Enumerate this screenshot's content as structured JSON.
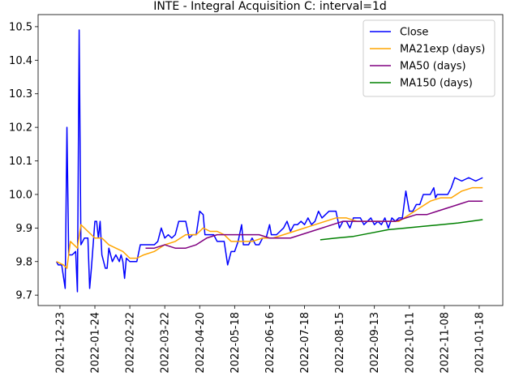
{
  "chart_data": {
    "type": "line",
    "title": "INTE - Integral Acquisition C: interval=1d",
    "xlim": [
      -10.5,
      255.5
    ],
    "ylim": [
      9.669,
      10.536
    ],
    "yticks": [
      9.7,
      9.8,
      9.9,
      {
        "value": 10,
        "label": "10.0"
      },
      10.1,
      10.2,
      10.3,
      10.4,
      10.5
    ],
    "xticks": [
      {
        "value": 2,
        "label": "2021-12-23"
      },
      {
        "value": 22,
        "label": "2022-01-24"
      },
      {
        "value": 42,
        "label": "2022-02-22"
      },
      {
        "value": 62,
        "label": "2022-03-22"
      },
      {
        "value": 82,
        "label": "2022-04-20"
      },
      {
        "value": 102,
        "label": "2022-05-18"
      },
      {
        "value": 122,
        "label": "2022-06-16"
      },
      {
        "value": 142,
        "label": "2022-07-18"
      },
      {
        "value": 162,
        "label": "2022-08-15"
      },
      {
        "value": 182,
        "label": "2022-09-13"
      },
      {
        "value": 202,
        "label": "2022-10-11"
      },
      {
        "value": 222,
        "label": "2022-11-08"
      },
      {
        "value": 242,
        "label": "2021-01-18"
      }
    ],
    "legend": "upper right",
    "series": [
      {
        "name": "Close",
        "color": "#0000ff",
        "x": [
          0,
          1,
          3,
          5,
          6,
          7,
          9,
          11,
          12,
          13,
          14,
          16,
          18,
          19,
          20,
          22,
          23,
          24,
          25,
          26,
          28,
          29,
          30,
          32,
          34,
          36,
          37,
          38,
          39,
          40,
          42,
          44,
          46,
          48,
          52,
          56,
          58,
          60,
          62,
          64,
          66,
          68,
          70,
          74,
          76,
          78,
          80,
          82,
          84,
          85,
          88,
          90,
          92,
          96,
          98,
          100,
          102,
          104,
          106,
          107,
          110,
          112,
          114,
          116,
          118,
          120,
          122,
          123,
          126,
          128,
          130,
          132,
          134,
          136,
          138,
          140,
          142,
          144,
          146,
          148,
          150,
          152,
          154,
          156,
          160,
          162,
          164,
          166,
          168,
          170,
          174,
          176,
          178,
          180,
          182,
          184,
          186,
          188,
          190,
          192,
          194,
          196,
          198,
          200,
          202,
          204,
          206,
          208,
          210,
          214,
          216,
          217,
          218,
          222,
          224,
          226,
          228,
          232,
          236,
          240,
          244
        ],
        "values": [
          9.8,
          9.79,
          9.79,
          9.72,
          10.2,
          9.82,
          9.82,
          9.83,
          9.71,
          10.49,
          9.85,
          9.87,
          9.87,
          9.72,
          9.78,
          9.92,
          9.92,
          9.87,
          9.92,
          9.82,
          9.78,
          9.78,
          9.84,
          9.8,
          9.82,
          9.8,
          9.82,
          9.8,
          9.75,
          9.81,
          9.8,
          9.8,
          9.8,
          9.85,
          9.85,
          9.85,
          9.86,
          9.9,
          9.87,
          9.88,
          9.87,
          9.88,
          9.92,
          9.92,
          9.87,
          9.88,
          9.88,
          9.95,
          9.94,
          9.88,
          9.88,
          9.88,
          9.86,
          9.86,
          9.79,
          9.83,
          9.83,
          9.86,
          9.91,
          9.85,
          9.85,
          9.87,
          9.85,
          9.85,
          9.87,
          9.87,
          9.91,
          9.88,
          9.88,
          9.89,
          9.9,
          9.92,
          9.89,
          9.91,
          9.91,
          9.92,
          9.91,
          9.93,
          9.91,
          9.92,
          9.95,
          9.93,
          9.94,
          9.95,
          9.95,
          9.9,
          9.92,
          9.92,
          9.9,
          9.93,
          9.93,
          9.91,
          9.92,
          9.93,
          9.91,
          9.92,
          9.91,
          9.93,
          9.9,
          9.93,
          9.92,
          9.93,
          9.93,
          10.01,
          9.95,
          9.95,
          9.97,
          9.97,
          10.0,
          10.0,
          10.02,
          9.99,
          10.0,
          10.0,
          10.0,
          10.02,
          10.05,
          10.04,
          10.05,
          10.04,
          10.05
        ]
      },
      {
        "name": "MA21exp (days)",
        "color": "#ffa500",
        "x": [
          0,
          4,
          6,
          8,
          12,
          14,
          18,
          22,
          26,
          30,
          34,
          38,
          42,
          46,
          50,
          56,
          62,
          68,
          74,
          80,
          84,
          88,
          92,
          96,
          100,
          106,
          112,
          118,
          124,
          130,
          136,
          142,
          148,
          154,
          160,
          166,
          172,
          178,
          184,
          190,
          196,
          202,
          208,
          214,
          220,
          226,
          232,
          238,
          244
        ],
        "values": [
          9.8,
          9.79,
          9.78,
          9.86,
          9.84,
          9.91,
          9.89,
          9.87,
          9.87,
          9.85,
          9.84,
          9.83,
          9.81,
          9.81,
          9.82,
          9.83,
          9.85,
          9.86,
          9.88,
          9.88,
          9.9,
          9.89,
          9.89,
          9.88,
          9.86,
          9.86,
          9.86,
          9.87,
          9.87,
          9.88,
          9.89,
          9.9,
          9.91,
          9.92,
          9.93,
          9.93,
          9.92,
          9.92,
          9.92,
          9.92,
          9.92,
          9.94,
          9.96,
          9.98,
          9.99,
          9.99,
          10.01,
          10.02,
          10.02
        ]
      },
      {
        "name": "MA50 (days)",
        "color": "#800080",
        "x": [
          51,
          56,
          62,
          68,
          74,
          80,
          86,
          92,
          98,
          104,
          110,
          116,
          122,
          128,
          134,
          140,
          146,
          152,
          158,
          164,
          170,
          176,
          182,
          188,
          194,
          200,
          206,
          212,
          218,
          224,
          230,
          236,
          244
        ],
        "values": [
          9.84,
          9.84,
          9.85,
          9.84,
          9.84,
          9.85,
          9.87,
          9.88,
          9.88,
          9.88,
          9.88,
          9.88,
          9.87,
          9.87,
          9.87,
          9.88,
          9.89,
          9.9,
          9.91,
          9.92,
          9.92,
          9.92,
          9.92,
          9.92,
          9.92,
          9.93,
          9.94,
          9.94,
          9.95,
          9.96,
          9.97,
          9.98,
          9.98
        ]
      },
      {
        "name": "MA150 (days)",
        "color": "#008000",
        "x": [
          151,
          160,
          170,
          180,
          190,
          200,
          210,
          220,
          230,
          244
        ],
        "values": [
          9.865,
          9.87,
          9.875,
          9.885,
          9.895,
          9.9,
          9.905,
          9.91,
          9.915,
          9.925
        ]
      }
    ]
  }
}
